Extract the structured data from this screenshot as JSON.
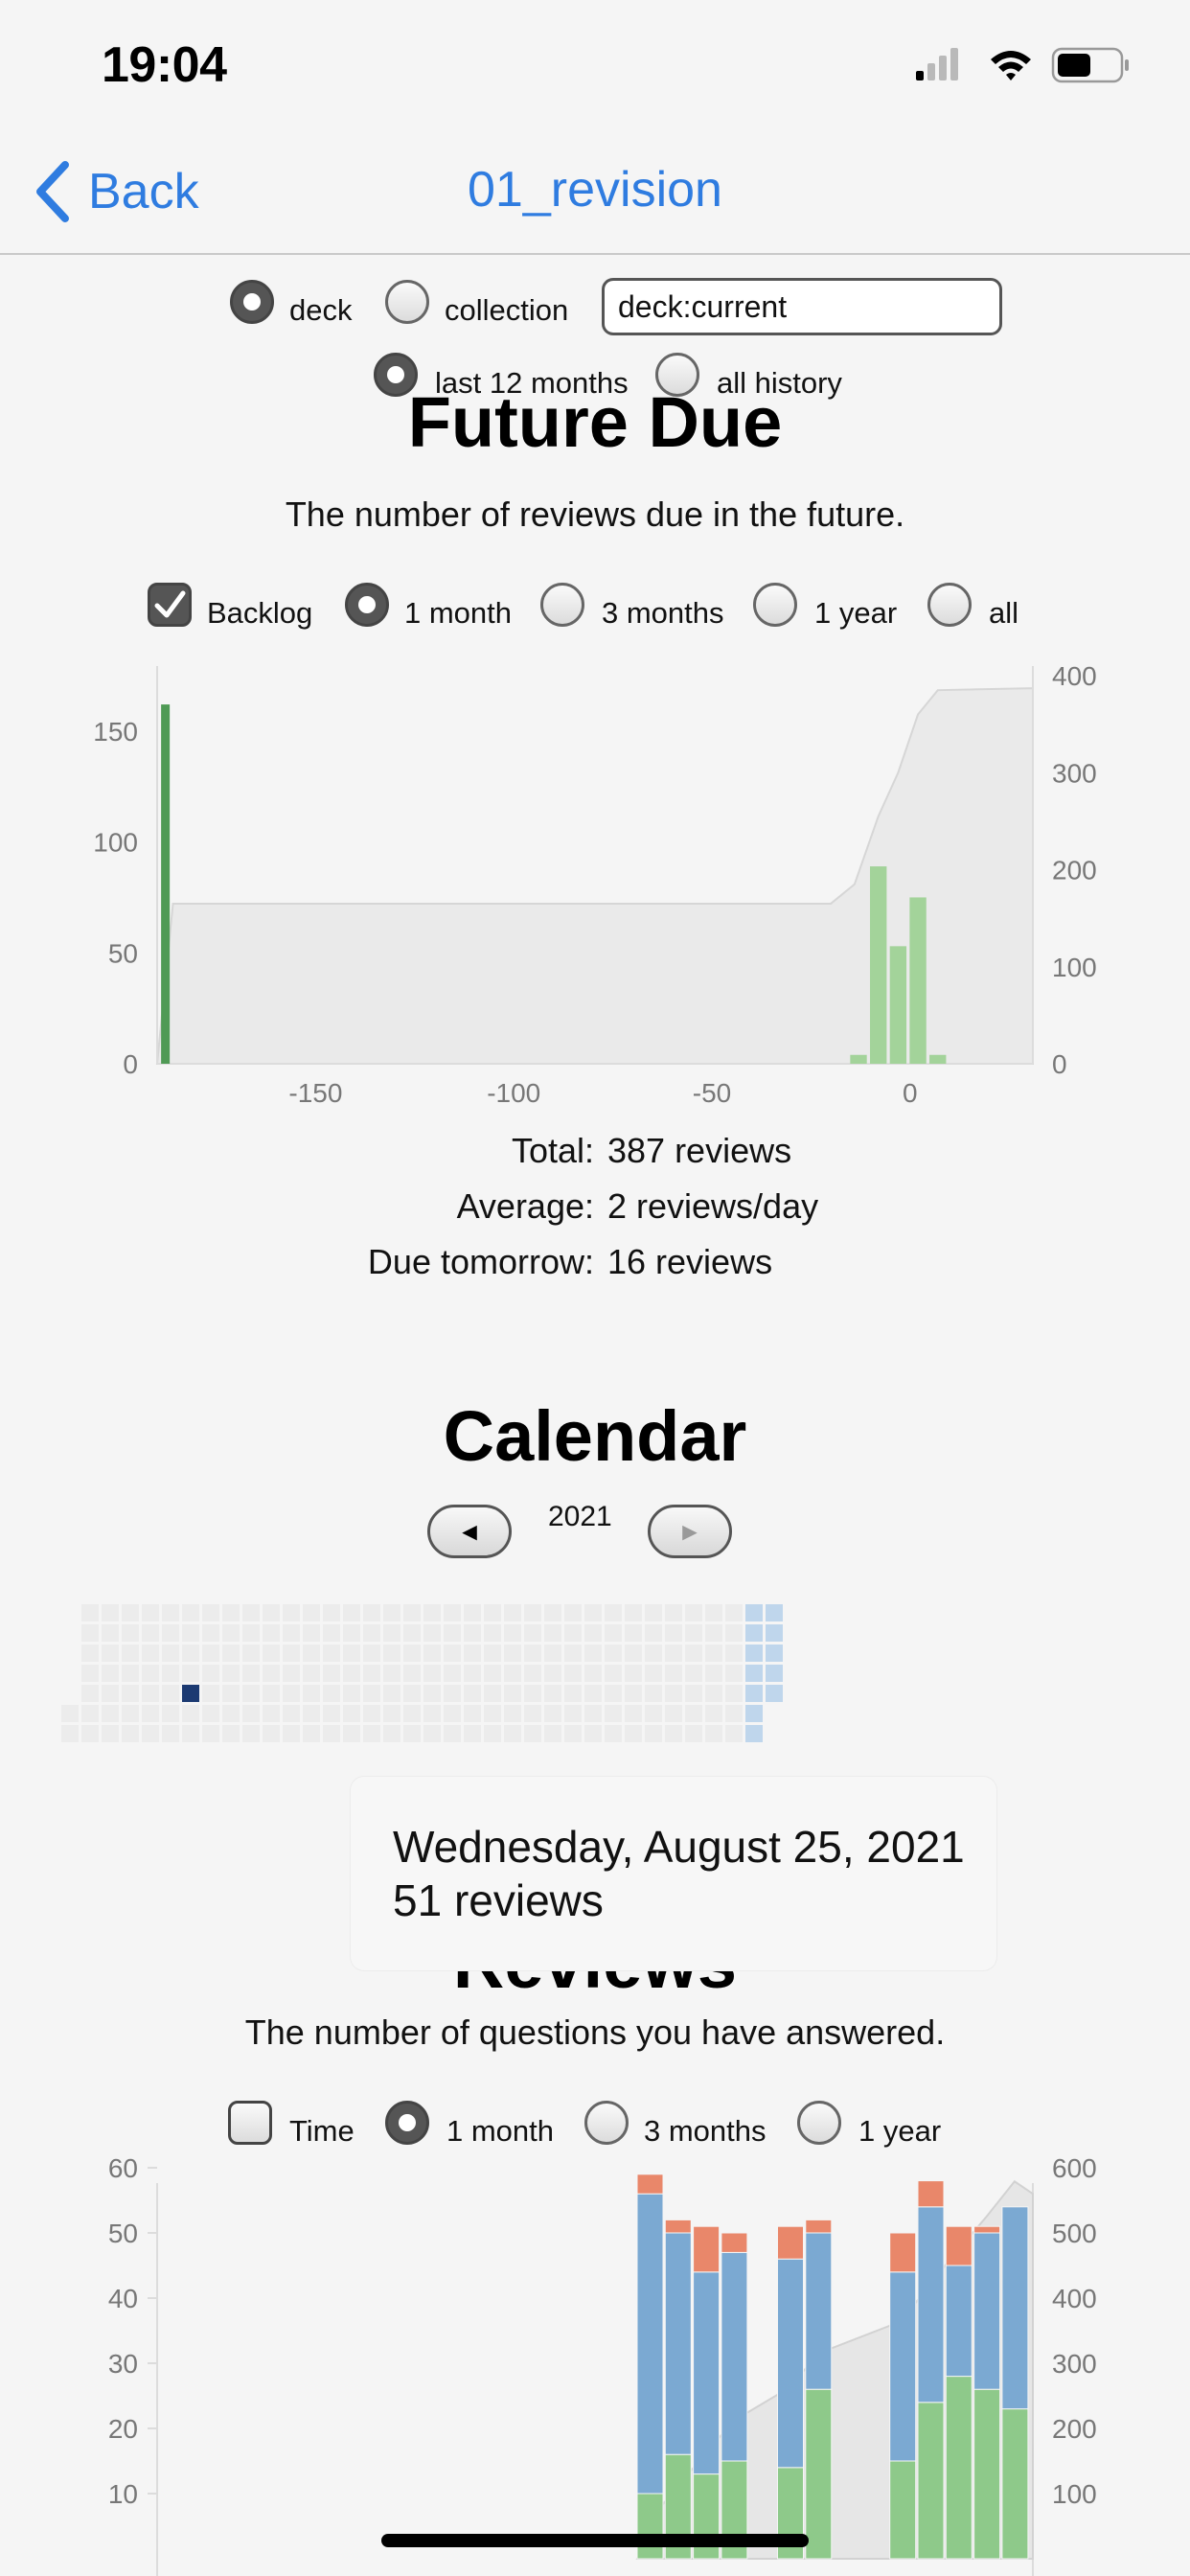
{
  "status": {
    "time": "19:04"
  },
  "nav": {
    "back_label": "Back",
    "title": "01_revision"
  },
  "filters": {
    "scope_options": [
      {
        "label": "deck",
        "selected": true
      },
      {
        "label": "collection",
        "selected": false
      }
    ],
    "search_value": "deck:current",
    "range_options": [
      {
        "label": "last 12 months",
        "selected": true
      },
      {
        "label": "all history",
        "selected": false
      }
    ]
  },
  "future_due": {
    "title": "Future Due",
    "subtitle": "The number of reviews due in the future.",
    "backlog_label": "Backlog",
    "backlog_checked": true,
    "options": [
      {
        "label": "1 month",
        "selected": true
      },
      {
        "label": "3 months",
        "selected": false
      },
      {
        "label": "1 year",
        "selected": false
      },
      {
        "label": "all",
        "selected": false
      }
    ],
    "stats": [
      {
        "label": "Total:",
        "value": "387 reviews"
      },
      {
        "label": "Average:",
        "value": "2 reviews/day"
      },
      {
        "label": "Due tomorrow:",
        "value": "16 reviews"
      }
    ]
  },
  "calendar": {
    "title": "Calendar",
    "year": "2021",
    "prev_label": "◄",
    "next_label": "►",
    "tooltip_date": "Wednesday, August 25, 2021",
    "tooltip_count": "51 reviews"
  },
  "reviews": {
    "title": "Reviews",
    "subtitle": "The number of questions you have answered.",
    "time_label": "Time",
    "time_checked": false,
    "options": [
      {
        "label": "1 month",
        "selected": true
      },
      {
        "label": "3 months",
        "selected": false
      },
      {
        "label": "1 year",
        "selected": false
      }
    ]
  },
  "chart_data": [
    {
      "type": "bar",
      "title": "Future Due",
      "x_ticks": [
        -150,
        -100,
        -50,
        0
      ],
      "xlim": [
        -190,
        31
      ],
      "y_ticks": [
        0,
        50,
        100,
        150
      ],
      "ylim": [
        0,
        175
      ],
      "y2_ticks": [
        0,
        100,
        200,
        300,
        400
      ],
      "y2lim": [
        0,
        400
      ],
      "series": [
        {
          "name": "overdue",
          "color": "#4f9a55",
          "points": [
            {
              "x": -189,
              "y": 162
            }
          ]
        },
        {
          "name": "due",
          "color": "#a3d39a",
          "points": [
            {
              "x": -13,
              "y": 4
            },
            {
              "x": -8,
              "y": 89
            },
            {
              "x": -3,
              "y": 53
            },
            {
              "x": 2,
              "y": 75
            },
            {
              "x": 7,
              "y": 4
            }
          ]
        }
      ],
      "cumulative": [
        {
          "x": -190,
          "y": 0
        },
        {
          "x": -186,
          "y": 165
        },
        {
          "x": -20,
          "y": 165
        },
        {
          "x": -14,
          "y": 185
        },
        {
          "x": -8,
          "y": 255
        },
        {
          "x": -3,
          "y": 300
        },
        {
          "x": 2,
          "y": 360
        },
        {
          "x": 7,
          "y": 385
        },
        {
          "x": 31,
          "y": 387
        }
      ]
    },
    {
      "type": "bar",
      "title": "Reviews",
      "y_ticks": [
        10,
        20,
        30,
        40,
        50,
        60
      ],
      "ylim": [
        0,
        60
      ],
      "y2_ticks": [
        100,
        200,
        300,
        400,
        500,
        600
      ],
      "y2lim": [
        0,
        600
      ],
      "series_colors": {
        "young": "#8ec98a",
        "mature": "#7ba9d2",
        "relearn": "#e9876a"
      },
      "bars": [
        {
          "day": -30,
          "young": 10,
          "mature": 46,
          "relearn": 3
        },
        {
          "day": -29,
          "young": 16,
          "mature": 34,
          "relearn": 2
        },
        {
          "day": -28,
          "young": 13,
          "mature": 31,
          "relearn": 7
        },
        {
          "day": -27,
          "young": 15,
          "mature": 32,
          "relearn": 3
        },
        {
          "day": -25,
          "young": 14,
          "mature": 32,
          "relearn": 5
        },
        {
          "day": -24,
          "young": 26,
          "mature": 24,
          "relearn": 2
        },
        {
          "day": -21,
          "young": 15,
          "mature": 29,
          "relearn": 6
        },
        {
          "day": -20,
          "young": 24,
          "mature": 30,
          "relearn": 4
        },
        {
          "day": -19,
          "young": 28,
          "mature": 17,
          "relearn": 6
        },
        {
          "day": -18,
          "young": 26,
          "mature": 24,
          "relearn": 1
        },
        {
          "day": -17,
          "young": 23,
          "mature": 31,
          "relearn": 0
        }
      ]
    }
  ]
}
